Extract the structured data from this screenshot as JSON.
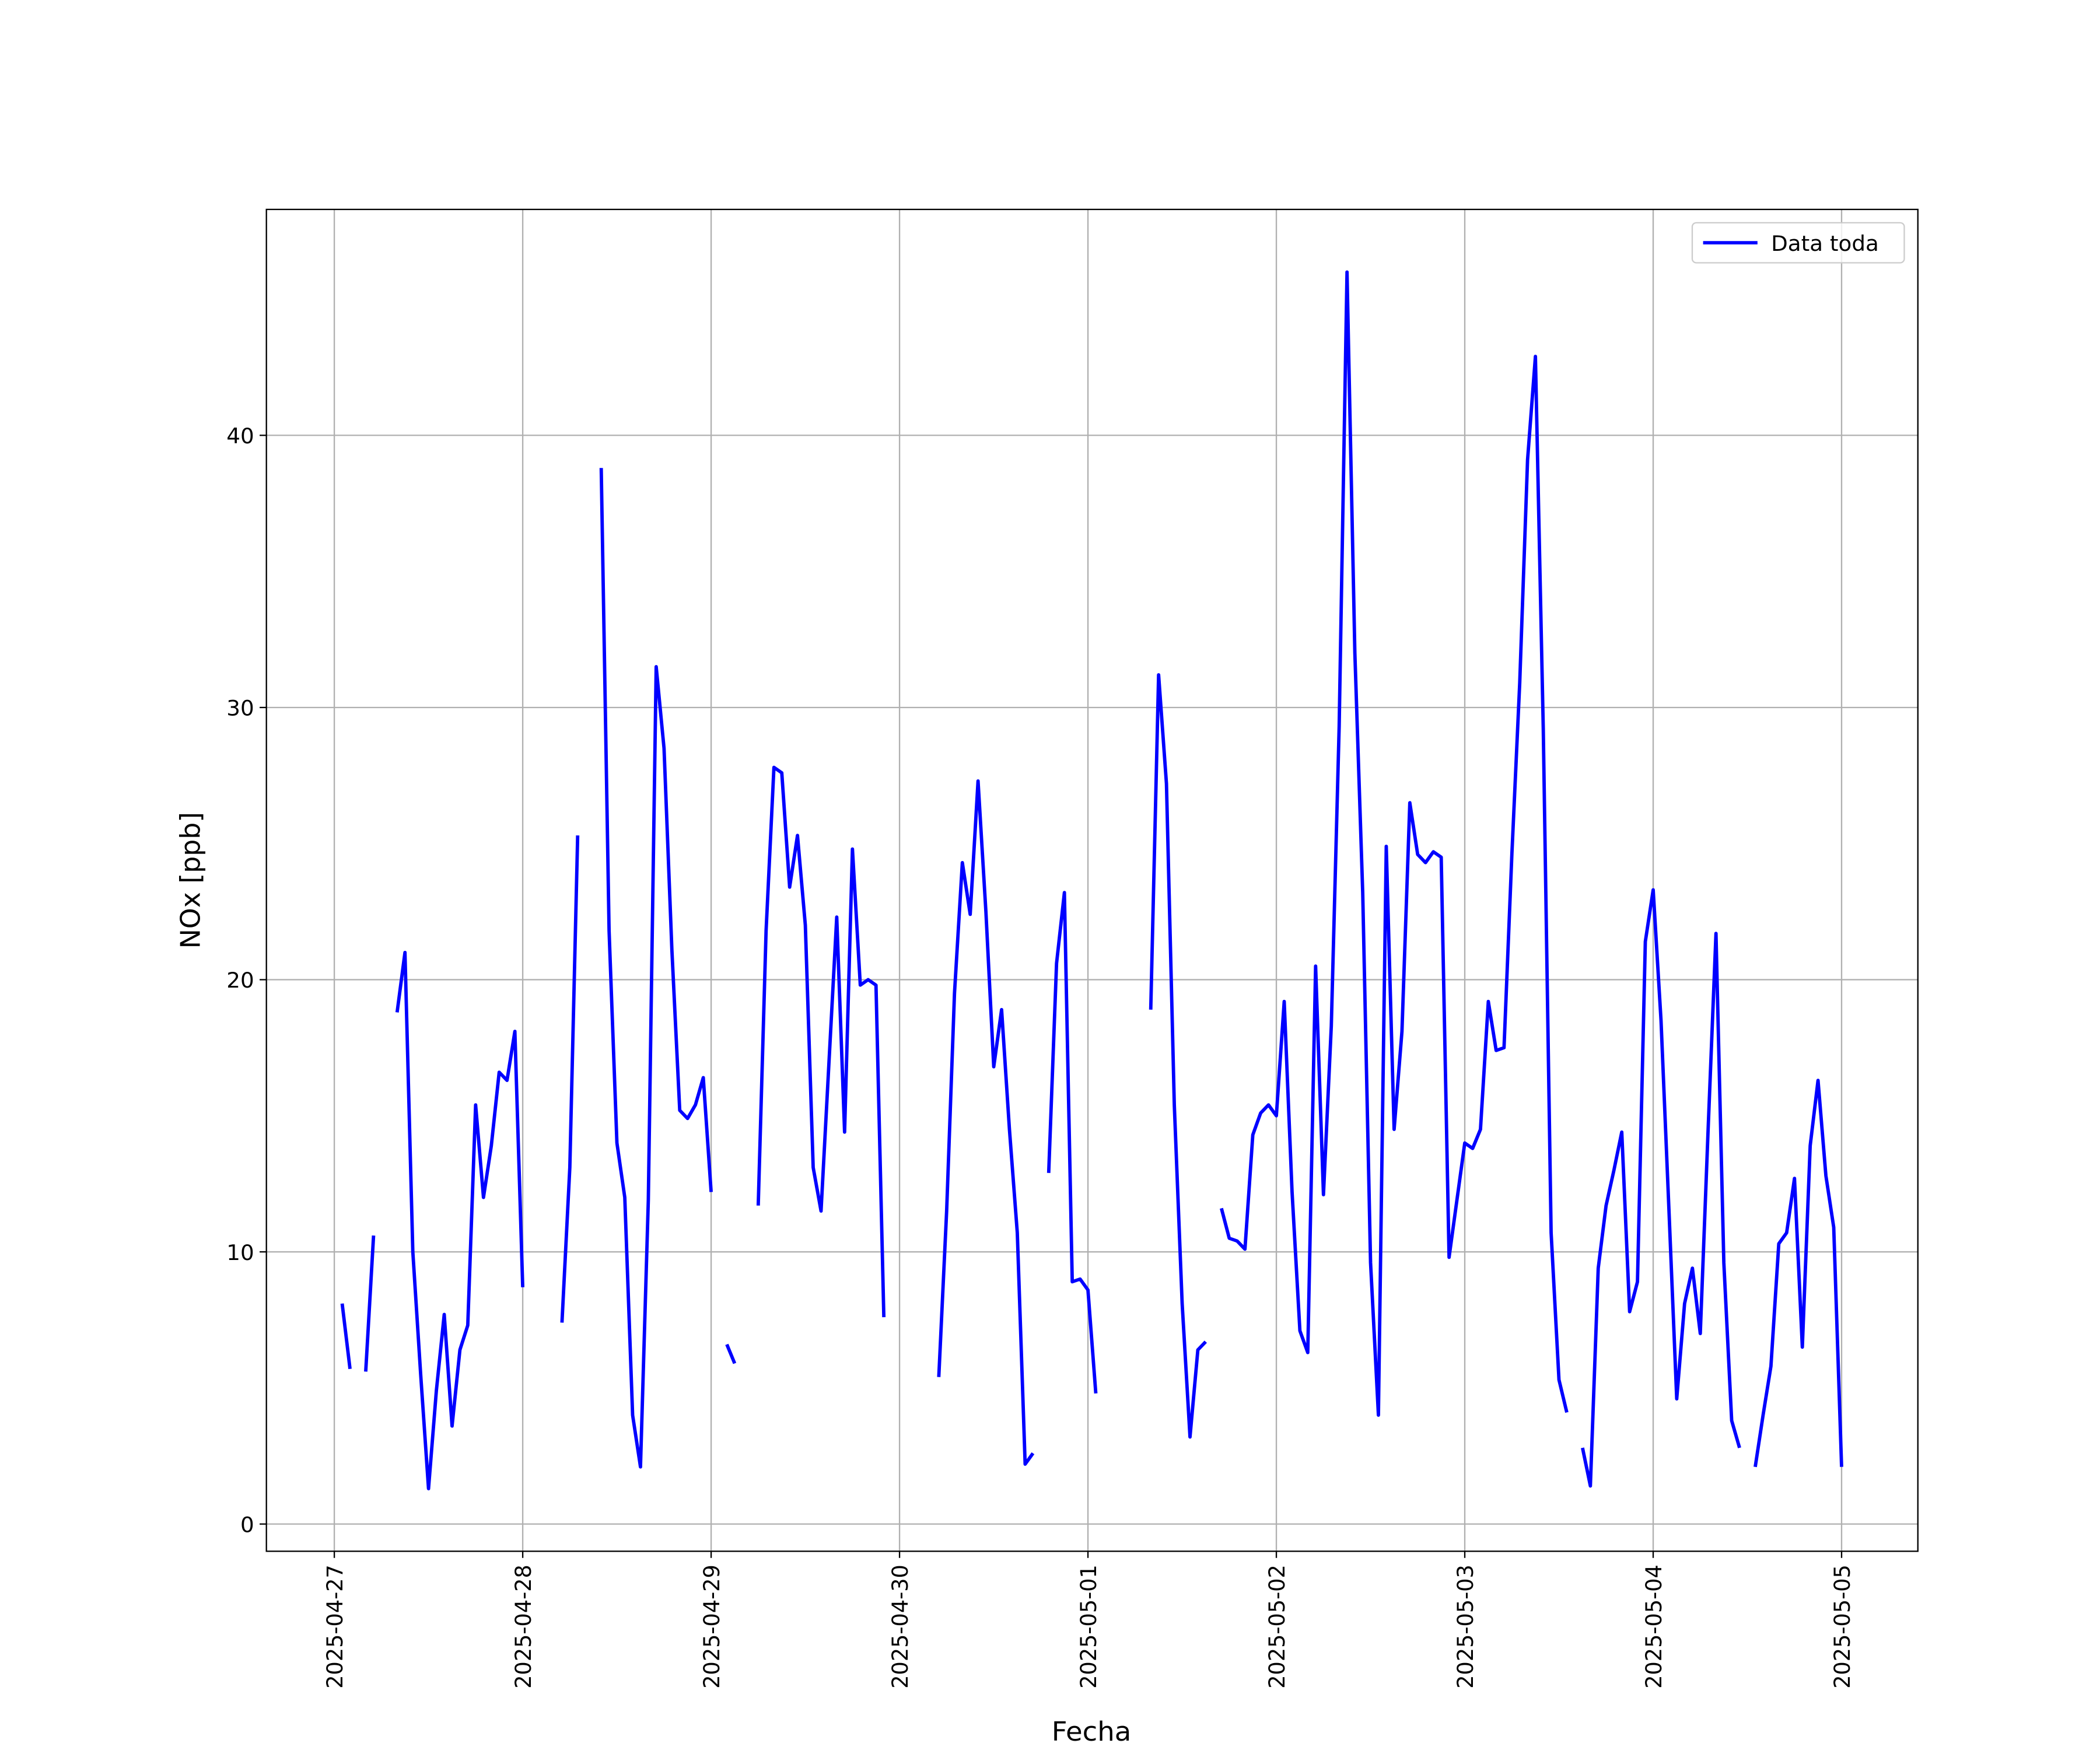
{
  "chart_data": {
    "type": "line",
    "xlabel": "Fecha",
    "ylabel": "NOx [ppb]",
    "x": [
      "2025-04-27 01:00",
      "2025-04-27 02:00",
      "2025-04-27 03:00",
      "2025-04-27 04:00",
      "2025-04-27 05:00",
      "2025-04-27 06:00",
      "2025-04-27 07:00",
      "2025-04-27 08:00",
      "2025-04-27 09:00",
      "2025-04-27 10:00",
      "2025-04-27 11:00",
      "2025-04-27 12:00",
      "2025-04-27 13:00",
      "2025-04-27 14:00",
      "2025-04-27 15:00",
      "2025-04-27 16:00",
      "2025-04-27 17:00",
      "2025-04-27 18:00",
      "2025-04-27 19:00",
      "2025-04-27 20:00",
      "2025-04-27 21:00",
      "2025-04-27 22:00",
      "2025-04-27 23:00",
      "2025-04-28 00:00",
      "2025-04-28 01:00",
      "2025-04-28 02:00",
      "2025-04-28 03:00",
      "2025-04-28 04:00",
      "2025-04-28 05:00",
      "2025-04-28 06:00",
      "2025-04-28 07:00",
      "2025-04-28 08:00",
      "2025-04-28 09:00",
      "2025-04-28 10:00",
      "2025-04-28 11:00",
      "2025-04-28 12:00",
      "2025-04-28 13:00",
      "2025-04-28 14:00",
      "2025-04-28 15:00",
      "2025-04-28 16:00",
      "2025-04-28 17:00",
      "2025-04-28 18:00",
      "2025-04-28 19:00",
      "2025-04-28 20:00",
      "2025-04-28 21:00",
      "2025-04-28 22:00",
      "2025-04-28 23:00",
      "2025-04-29 00:00",
      "2025-04-29 01:00",
      "2025-04-29 02:00",
      "2025-04-29 03:00",
      "2025-04-29 04:00",
      "2025-04-29 05:00",
      "2025-04-29 06:00",
      "2025-04-29 07:00",
      "2025-04-29 08:00",
      "2025-04-29 09:00",
      "2025-04-29 10:00",
      "2025-04-29 11:00",
      "2025-04-29 12:00",
      "2025-04-29 13:00",
      "2025-04-29 14:00",
      "2025-04-29 15:00",
      "2025-04-29 16:00",
      "2025-04-29 17:00",
      "2025-04-29 18:00",
      "2025-04-29 19:00",
      "2025-04-29 20:00",
      "2025-04-29 21:00",
      "2025-04-29 22:00",
      "2025-04-29 23:00",
      "2025-04-30 00:00",
      "2025-04-30 01:00",
      "2025-04-30 02:00",
      "2025-04-30 03:00",
      "2025-04-30 04:00",
      "2025-04-30 05:00",
      "2025-04-30 06:00",
      "2025-04-30 07:00",
      "2025-04-30 08:00",
      "2025-04-30 09:00",
      "2025-04-30 10:00",
      "2025-04-30 11:00",
      "2025-04-30 12:00",
      "2025-04-30 13:00",
      "2025-04-30 14:00",
      "2025-04-30 15:00",
      "2025-04-30 16:00",
      "2025-04-30 17:00",
      "2025-04-30 18:00",
      "2025-04-30 19:00",
      "2025-04-30 20:00",
      "2025-04-30 21:00",
      "2025-04-30 22:00",
      "2025-04-30 23:00",
      "2025-05-01 00:00",
      "2025-05-01 01:00",
      "2025-05-01 02:00",
      "2025-05-01 03:00",
      "2025-05-01 04:00",
      "2025-05-01 05:00",
      "2025-05-01 06:00",
      "2025-05-01 07:00",
      "2025-05-01 08:00",
      "2025-05-01 09:00",
      "2025-05-01 10:00",
      "2025-05-01 11:00",
      "2025-05-01 12:00",
      "2025-05-01 13:00",
      "2025-05-01 14:00",
      "2025-05-01 15:00",
      "2025-05-01 16:00",
      "2025-05-01 17:00",
      "2025-05-01 18:00",
      "2025-05-01 19:00",
      "2025-05-01 20:00",
      "2025-05-01 21:00",
      "2025-05-01 22:00",
      "2025-05-01 23:00",
      "2025-05-02 00:00",
      "2025-05-02 01:00",
      "2025-05-02 02:00",
      "2025-05-02 03:00",
      "2025-05-02 04:00",
      "2025-05-02 05:00",
      "2025-05-02 06:00",
      "2025-05-02 07:00",
      "2025-05-02 08:00",
      "2025-05-02 09:00",
      "2025-05-02 10:00",
      "2025-05-02 11:00",
      "2025-05-02 12:00",
      "2025-05-02 13:00",
      "2025-05-02 14:00",
      "2025-05-02 15:00",
      "2025-05-02 16:00",
      "2025-05-02 17:00",
      "2025-05-02 18:00",
      "2025-05-02 19:00",
      "2025-05-02 20:00",
      "2025-05-02 21:00",
      "2025-05-02 22:00",
      "2025-05-02 23:00",
      "2025-05-03 00:00",
      "2025-05-03 01:00",
      "2025-05-03 02:00",
      "2025-05-03 03:00",
      "2025-05-03 04:00",
      "2025-05-03 05:00",
      "2025-05-03 06:00",
      "2025-05-03 07:00",
      "2025-05-03 08:00",
      "2025-05-03 09:00",
      "2025-05-03 10:00",
      "2025-05-03 11:00",
      "2025-05-03 12:00",
      "2025-05-03 13:00",
      "2025-05-03 14:00",
      "2025-05-03 15:00",
      "2025-05-03 16:00",
      "2025-05-03 17:00",
      "2025-05-03 18:00",
      "2025-05-03 19:00",
      "2025-05-03 20:00",
      "2025-05-03 21:00",
      "2025-05-03 22:00",
      "2025-05-03 23:00",
      "2025-05-04 00:00",
      "2025-05-04 01:00",
      "2025-05-04 02:00",
      "2025-05-04 03:00",
      "2025-05-04 04:00",
      "2025-05-04 05:00",
      "2025-05-04 06:00",
      "2025-05-04 07:00",
      "2025-05-04 08:00",
      "2025-05-04 09:00",
      "2025-05-04 10:00",
      "2025-05-04 11:00",
      "2025-05-04 12:00",
      "2025-05-04 13:00",
      "2025-05-04 14:00",
      "2025-05-04 15:00",
      "2025-05-04 16:00",
      "2025-05-04 17:00",
      "2025-05-04 18:00",
      "2025-05-04 19:00",
      "2025-05-04 20:00",
      "2025-05-04 21:00",
      "2025-05-04 22:00",
      "2025-05-04 23:00",
      "2025-05-05 00:00"
    ],
    "series": [
      {
        "name": "Data toda",
        "color": "#0000ff",
        "values": [
          8.1,
          5.7,
          null,
          5.6,
          10.6,
          null,
          null,
          18.8,
          21.0,
          10.0,
          5.5,
          1.3,
          4.9,
          7.7,
          3.6,
          6.4,
          7.3,
          15.4,
          12.0,
          13.9,
          16.6,
          16.3,
          18.1,
          8.7,
          null,
          null,
          null,
          null,
          7.4,
          13.1,
          25.3,
          null,
          null,
          38.8,
          21.8,
          14.0,
          12.0,
          4.0,
          2.1,
          11.9,
          31.5,
          28.5,
          21.1,
          15.2,
          14.9,
          15.4,
          16.4,
          12.2,
          null,
          6.6,
          5.9,
          null,
          null,
          11.7,
          21.8,
          27.8,
          27.6,
          23.4,
          25.3,
          22.0,
          13.1,
          11.5,
          16.9,
          22.3,
          14.4,
          24.8,
          19.8,
          20.0,
          19.8,
          7.6,
          null,
          null,
          null,
          null,
          null,
          null,
          5.4,
          11.5,
          19.5,
          24.3,
          22.4,
          27.3,
          22.5,
          16.8,
          18.9,
          14.5,
          10.7,
          2.2,
          2.6,
          null,
          12.9,
          20.6,
          23.2,
          8.9,
          9.0,
          8.6,
          4.8,
          null,
          null,
          null,
          null,
          null,
          null,
          18.9,
          31.2,
          27.2,
          15.4,
          8.1,
          3.2,
          6.4,
          6.7,
          null,
          11.6,
          10.5,
          10.4,
          10.1,
          14.3,
          15.1,
          15.4,
          15.0,
          19.2,
          12.2,
          7.1,
          6.3,
          20.5,
          12.1,
          18.3,
          29.3,
          46.0,
          32.0,
          23.2,
          9.6,
          4.0,
          24.9,
          14.5,
          18.1,
          26.5,
          24.6,
          24.3,
          24.7,
          24.5,
          9.8,
          11.9,
          14.0,
          13.8,
          14.5,
          19.2,
          17.4,
          17.5,
          24.6,
          30.9,
          39.1,
          42.9,
          29.2,
          10.7,
          5.3,
          4.1,
          null,
          2.8,
          1.4,
          9.4,
          11.7,
          13.0,
          14.4,
          7.8,
          8.9,
          21.4,
          23.3,
          18.5,
          11.6,
          4.6,
          8.1,
          9.4,
          7.0,
          14.5,
          21.7,
          9.6,
          3.8,
          2.8,
          null,
          2.1,
          4.0,
          5.8,
          10.3,
          10.7,
          12.7,
          6.5,
          13.9,
          16.3,
          12.8,
          10.9,
          2.1
        ]
      }
    ],
    "xlim": [
      "2025-04-26 15:21",
      "2025-05-05 09:43"
    ],
    "xticks": [
      "2025-04-27",
      "2025-04-28",
      "2025-04-29",
      "2025-04-30",
      "2025-05-01",
      "2025-05-02",
      "2025-05-03",
      "2025-05-04",
      "2025-05-05"
    ],
    "ylim": [
      -1,
      48.3
    ],
    "yticks": [
      0,
      10,
      20,
      30,
      40
    ],
    "grid": true,
    "legend": "upper right"
  }
}
